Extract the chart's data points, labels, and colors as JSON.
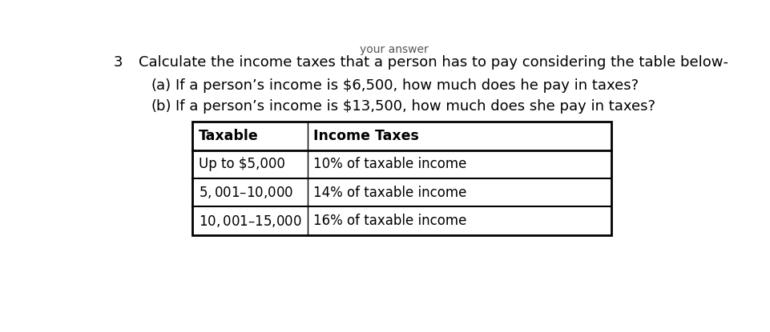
{
  "problem_number": "3",
  "main_text": "Calculate the income taxes that a person has to pay considering the table below-",
  "part_a_label": "(a)",
  "part_a_text": "If a person’s income is $6,500, how much does he pay in taxes?",
  "part_b_label": "(b)",
  "part_b_text": "If a person’s income is $13,500, how much does she pay in taxes?",
  "table_headers": [
    "Taxable",
    "Income Taxes"
  ],
  "table_rows": [
    [
      "Up to $5,000",
      "10% of taxable income"
    ],
    [
      "$5,001–$10,000",
      "14% of taxable income"
    ],
    [
      "$10,001–$15,000",
      "16% of taxable income"
    ]
  ],
  "bg_color": "#ffffff",
  "text_color": "#000000",
  "font_size_main": 13.0,
  "font_size_number": 13.0,
  "font_size_table_header": 12.5,
  "font_size_table_data": 12.0,
  "top_text": "your answer",
  "top_text_color": "#555555"
}
